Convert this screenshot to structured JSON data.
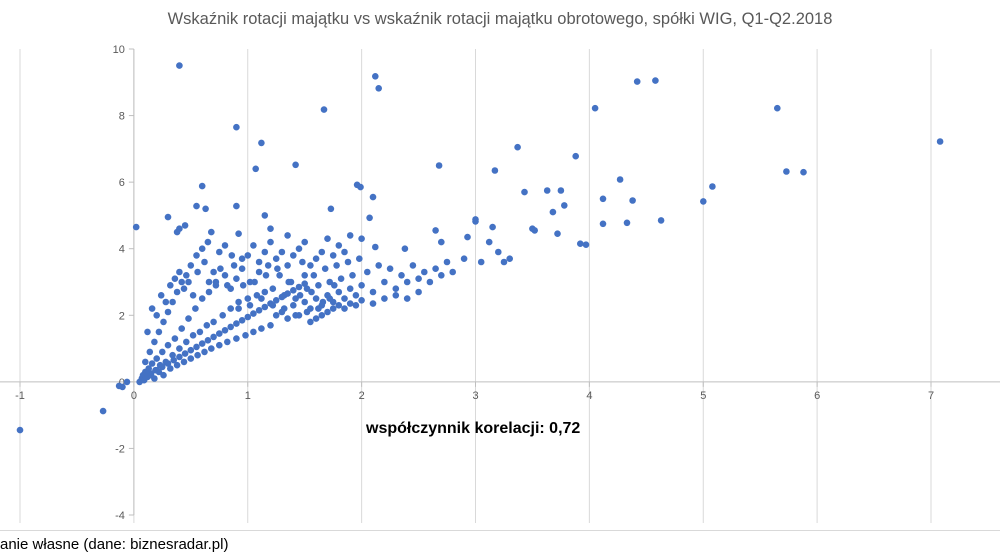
{
  "chart_data": {
    "type": "scatter",
    "title": "Wskaźnik rotacji majątku vs wskaźnik rotacji majątku obrotowego, spółki WIG, Q1-Q2.2018",
    "xlabel": "",
    "ylabel": "",
    "xlim": [
      -1,
      7
    ],
    "ylim": [
      -4,
      10
    ],
    "x_ticks": [
      -1,
      0,
      1,
      2,
      3,
      4,
      5,
      6,
      7
    ],
    "y_ticks": [
      -4,
      -2,
      0,
      2,
      4,
      6,
      8,
      10
    ],
    "grid": "vertical",
    "marker_color": "#4472c4",
    "annotation": "współczynnik korelacji: 0,72",
    "source": "anie własne (dane: biznesradar.pl)",
    "correlation": 0.72,
    "points": [
      [
        -1.0,
        -1.45
      ],
      [
        -0.27,
        -0.88
      ],
      [
        -0.13,
        -0.12
      ],
      [
        -0.1,
        -0.15
      ],
      [
        -0.06,
        0.0
      ],
      [
        0.02,
        4.65
      ],
      [
        0.4,
        9.5
      ],
      [
        2.12,
        9.18
      ],
      [
        2.15,
        8.82
      ],
      [
        1.67,
        8.18
      ],
      [
        0.9,
        7.65
      ],
      [
        1.12,
        7.18
      ],
      [
        1.42,
        6.52
      ],
      [
        1.07,
        6.4
      ],
      [
        1.96,
        5.92
      ],
      [
        1.99,
        5.85
      ],
      [
        2.1,
        5.55
      ],
      [
        0.6,
        5.88
      ],
      [
        0.55,
        5.28
      ],
      [
        0.63,
        5.2
      ],
      [
        0.9,
        5.28
      ],
      [
        1.15,
        5.0
      ],
      [
        1.73,
        5.2
      ],
      [
        2.07,
        4.93
      ],
      [
        0.3,
        4.95
      ],
      [
        0.38,
        4.5
      ],
      [
        0.4,
        4.6
      ],
      [
        0.45,
        4.7
      ],
      [
        0.68,
        4.5
      ],
      [
        0.92,
        4.45
      ],
      [
        1.2,
        4.6
      ],
      [
        1.35,
        4.4
      ],
      [
        1.5,
        4.2
      ],
      [
        2.0,
        4.3
      ],
      [
        2.12,
        4.05
      ],
      [
        2.38,
        4.0
      ],
      [
        2.65,
        4.55
      ],
      [
        2.68,
        6.5
      ],
      [
        2.7,
        4.2
      ],
      [
        2.93,
        4.35
      ],
      [
        3.0,
        4.82
      ],
      [
        3.0,
        4.88
      ],
      [
        3.12,
        4.2
      ],
      [
        3.15,
        4.65
      ],
      [
        3.17,
        6.35
      ],
      [
        3.2,
        3.9
      ],
      [
        3.37,
        7.05
      ],
      [
        3.43,
        5.7
      ],
      [
        3.5,
        4.6
      ],
      [
        3.52,
        4.55
      ],
      [
        3.63,
        5.75
      ],
      [
        3.68,
        5.1
      ],
      [
        3.72,
        4.45
      ],
      [
        3.75,
        5.75
      ],
      [
        3.78,
        5.3
      ],
      [
        3.88,
        6.78
      ],
      [
        3.92,
        4.15
      ],
      [
        3.97,
        4.12
      ],
      [
        4.05,
        8.22
      ],
      [
        4.12,
        5.5
      ],
      [
        4.12,
        4.75
      ],
      [
        4.27,
        6.08
      ],
      [
        4.33,
        4.78
      ],
      [
        4.38,
        5.45
      ],
      [
        4.42,
        9.02
      ],
      [
        4.58,
        9.05
      ],
      [
        4.63,
        4.85
      ],
      [
        5.0,
        5.42
      ],
      [
        5.08,
        5.87
      ],
      [
        5.65,
        8.22
      ],
      [
        5.73,
        6.32
      ],
      [
        5.88,
        6.3
      ],
      [
        7.08,
        7.22
      ],
      [
        0.05,
        0.0
      ],
      [
        0.07,
        0.1
      ],
      [
        0.08,
        0.2
      ],
      [
        0.09,
        0.05
      ],
      [
        0.1,
        0.3
      ],
      [
        0.12,
        0.15
      ],
      [
        0.13,
        0.4
      ],
      [
        0.15,
        0.25
      ],
      [
        0.16,
        0.55
      ],
      [
        0.18,
        0.1
      ],
      [
        0.19,
        0.35
      ],
      [
        0.2,
        0.7
      ],
      [
        0.22,
        0.3
      ],
      [
        0.23,
        0.5
      ],
      [
        0.25,
        0.9
      ],
      [
        0.26,
        0.2
      ],
      [
        0.28,
        0.6
      ],
      [
        0.3,
        1.1
      ],
      [
        0.32,
        0.4
      ],
      [
        0.34,
        0.8
      ],
      [
        0.36,
        1.3
      ],
      [
        0.38,
        0.5
      ],
      [
        0.4,
        1.0
      ],
      [
        0.42,
        1.6
      ],
      [
        0.44,
        0.6
      ],
      [
        0.46,
        1.2
      ],
      [
        0.48,
        1.9
      ],
      [
        0.5,
        0.7
      ],
      [
        0.52,
        1.4
      ],
      [
        0.54,
        2.2
      ],
      [
        0.56,
        0.8
      ],
      [
        0.58,
        1.5
      ],
      [
        0.6,
        2.5
      ],
      [
        0.62,
        0.9
      ],
      [
        0.64,
        1.7
      ],
      [
        0.66,
        2.7
      ],
      [
        0.68,
        1.0
      ],
      [
        0.7,
        1.8
      ],
      [
        0.72,
        3.0
      ],
      [
        0.75,
        1.1
      ],
      [
        0.78,
        2.0
      ],
      [
        0.8,
        3.2
      ],
      [
        0.82,
        1.2
      ],
      [
        0.85,
        2.2
      ],
      [
        0.88,
        3.5
      ],
      [
        0.9,
        1.3
      ],
      [
        0.92,
        2.4
      ],
      [
        0.95,
        3.7
      ],
      [
        0.98,
        1.4
      ],
      [
        1.0,
        2.5
      ],
      [
        1.02,
        3.0
      ],
      [
        1.05,
        1.5
      ],
      [
        1.08,
        2.6
      ],
      [
        1.1,
        3.3
      ],
      [
        1.12,
        1.6
      ],
      [
        1.15,
        2.7
      ],
      [
        1.18,
        3.5
      ],
      [
        1.2,
        1.7
      ],
      [
        1.22,
        2.8
      ],
      [
        1.25,
        2.0
      ],
      [
        1.28,
        3.2
      ],
      [
        1.3,
        2.1
      ],
      [
        1.32,
        2.6
      ],
      [
        1.35,
        1.9
      ],
      [
        1.38,
        3.0
      ],
      [
        1.4,
        2.3
      ],
      [
        1.42,
        2.5
      ],
      [
        1.45,
        2.0
      ],
      [
        1.48,
        3.6
      ],
      [
        1.5,
        2.4
      ],
      [
        1.52,
        2.8
      ],
      [
        1.55,
        2.2
      ],
      [
        1.58,
        3.2
      ],
      [
        1.6,
        2.5
      ],
      [
        1.62,
        2.9
      ],
      [
        1.65,
        2.3
      ],
      [
        1.68,
        3.4
      ],
      [
        1.7,
        2.6
      ],
      [
        1.72,
        3.0
      ],
      [
        1.75,
        2.4
      ],
      [
        1.78,
        3.5
      ],
      [
        1.8,
        2.7
      ],
      [
        1.82,
        3.1
      ],
      [
        1.85,
        2.5
      ],
      [
        1.88,
        3.6
      ],
      [
        1.9,
        2.8
      ],
      [
        1.92,
        3.2
      ],
      [
        1.95,
        2.6
      ],
      [
        1.98,
        3.7
      ],
      [
        2.0,
        2.9
      ],
      [
        2.05,
        3.3
      ],
      [
        2.1,
        2.7
      ],
      [
        2.15,
        3.5
      ],
      [
        2.2,
        3.0
      ],
      [
        2.25,
        3.4
      ],
      [
        2.3,
        2.8
      ],
      [
        2.35,
        3.2
      ],
      [
        2.4,
        3.0
      ],
      [
        2.45,
        3.5
      ],
      [
        2.5,
        3.1
      ],
      [
        2.55,
        3.3
      ],
      [
        2.6,
        3.0
      ],
      [
        2.65,
        3.4
      ],
      [
        2.7,
        3.2
      ],
      [
        2.75,
        3.6
      ],
      [
        2.8,
        3.3
      ],
      [
        2.9,
        3.7
      ],
      [
        3.05,
        3.6
      ],
      [
        3.25,
        3.6
      ],
      [
        3.3,
        3.7
      ],
      [
        0.1,
        0.6
      ],
      [
        0.14,
        0.9
      ],
      [
        0.18,
        1.2
      ],
      [
        0.22,
        1.5
      ],
      [
        0.26,
        1.8
      ],
      [
        0.3,
        2.1
      ],
      [
        0.34,
        2.4
      ],
      [
        0.38,
        2.7
      ],
      [
        0.42,
        3.0
      ],
      [
        0.46,
        3.2
      ],
      [
        0.5,
        3.5
      ],
      [
        0.55,
        3.8
      ],
      [
        0.6,
        4.0
      ],
      [
        0.65,
        4.2
      ],
      [
        0.7,
        3.3
      ],
      [
        0.75,
        3.9
      ],
      [
        0.8,
        4.1
      ],
      [
        0.85,
        2.8
      ],
      [
        0.9,
        3.1
      ],
      [
        0.95,
        3.4
      ],
      [
        1.0,
        3.8
      ],
      [
        1.05,
        4.1
      ],
      [
        1.1,
        3.6
      ],
      [
        1.15,
        3.9
      ],
      [
        1.2,
        4.2
      ],
      [
        1.25,
        3.7
      ],
      [
        1.3,
        3.9
      ],
      [
        1.35,
        3.5
      ],
      [
        1.4,
        3.8
      ],
      [
        1.45,
        4.0
      ],
      [
        1.5,
        3.2
      ],
      [
        1.55,
        3.5
      ],
      [
        1.6,
        3.7
      ],
      [
        1.65,
        3.9
      ],
      [
        1.7,
        4.3
      ],
      [
        1.75,
        3.8
      ],
      [
        1.8,
        4.1
      ],
      [
        1.85,
        3.9
      ],
      [
        1.9,
        4.4
      ],
      [
        0.15,
        0.2
      ],
      [
        0.2,
        0.35
      ],
      [
        0.25,
        0.45
      ],
      [
        0.3,
        0.55
      ],
      [
        0.35,
        0.65
      ],
      [
        0.4,
        0.75
      ],
      [
        0.45,
        0.85
      ],
      [
        0.5,
        0.95
      ],
      [
        0.55,
        1.05
      ],
      [
        0.6,
        1.15
      ],
      [
        0.65,
        1.25
      ],
      [
        0.7,
        1.35
      ],
      [
        0.75,
        1.45
      ],
      [
        0.8,
        1.55
      ],
      [
        0.85,
        1.65
      ],
      [
        0.9,
        1.75
      ],
      [
        0.95,
        1.85
      ],
      [
        1.0,
        1.95
      ],
      [
        1.05,
        2.05
      ],
      [
        1.1,
        2.15
      ],
      [
        1.15,
        2.25
      ],
      [
        1.2,
        2.35
      ],
      [
        1.25,
        2.45
      ],
      [
        1.3,
        2.55
      ],
      [
        1.35,
        2.65
      ],
      [
        1.4,
        2.75
      ],
      [
        1.45,
        2.85
      ],
      [
        1.5,
        2.95
      ],
      [
        1.55,
        1.8
      ],
      [
        1.6,
        1.9
      ],
      [
        1.65,
        2.0
      ],
      [
        1.7,
        2.1
      ],
      [
        1.75,
        2.2
      ],
      [
        1.8,
        2.3
      ],
      [
        1.85,
        2.2
      ],
      [
        1.9,
        2.35
      ],
      [
        1.95,
        2.3
      ],
      [
        2.0,
        2.45
      ],
      [
        2.1,
        2.35
      ],
      [
        2.2,
        2.5
      ],
      [
        2.3,
        2.6
      ],
      [
        2.4,
        2.5
      ],
      [
        2.5,
        2.7
      ],
      [
        0.12,
        1.5
      ],
      [
        0.16,
        2.2
      ],
      [
        0.2,
        2.0
      ],
      [
        0.24,
        2.6
      ],
      [
        0.28,
        2.4
      ],
      [
        0.32,
        2.9
      ],
      [
        0.36,
        3.1
      ],
      [
        0.4,
        3.3
      ],
      [
        0.44,
        2.8
      ],
      [
        0.48,
        3.0
      ],
      [
        0.52,
        2.6
      ],
      [
        0.56,
        3.3
      ],
      [
        0.62,
        3.6
      ],
      [
        0.66,
        3.0
      ],
      [
        0.72,
        2.9
      ],
      [
        0.76,
        3.4
      ],
      [
        0.82,
        2.9
      ],
      [
        0.86,
        3.8
      ],
      [
        0.92,
        2.2
      ],
      [
        0.96,
        2.9
      ],
      [
        1.02,
        2.3
      ],
      [
        1.06,
        3.0
      ],
      [
        1.12,
        2.5
      ],
      [
        1.16,
        3.2
      ],
      [
        1.22,
        2.3
      ],
      [
        1.26,
        3.4
      ],
      [
        1.32,
        2.2
      ],
      [
        1.36,
        3.0
      ],
      [
        1.42,
        2.0
      ],
      [
        1.46,
        2.6
      ],
      [
        1.52,
        2.1
      ],
      [
        1.56,
        2.7
      ],
      [
        1.62,
        2.2
      ],
      [
        1.66,
        2.4
      ],
      [
        1.72,
        2.5
      ],
      [
        1.76,
        2.9
      ]
    ]
  }
}
